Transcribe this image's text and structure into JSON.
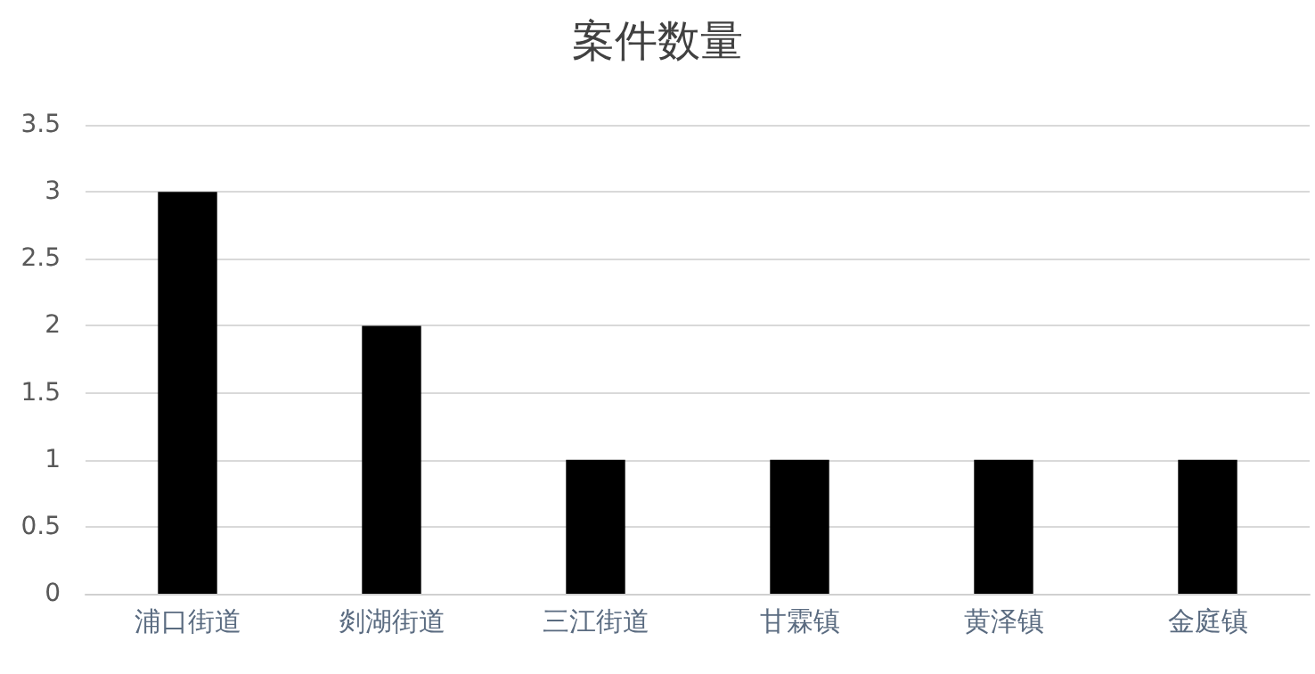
{
  "chart_data": {
    "type": "bar",
    "title": "案件数量",
    "categories": [
      "浦口街道",
      "剡湖街道",
      "三江街道",
      "甘霖镇",
      "黄泽镇",
      "金庭镇"
    ],
    "values": [
      3,
      2,
      1,
      1,
      1,
      1
    ],
    "color": "#000000",
    "ylim": [
      0,
      3.5
    ],
    "yticks": [
      0,
      0.5,
      1,
      1.5,
      2,
      2.5,
      3,
      3.5
    ],
    "grid": "y"
  }
}
